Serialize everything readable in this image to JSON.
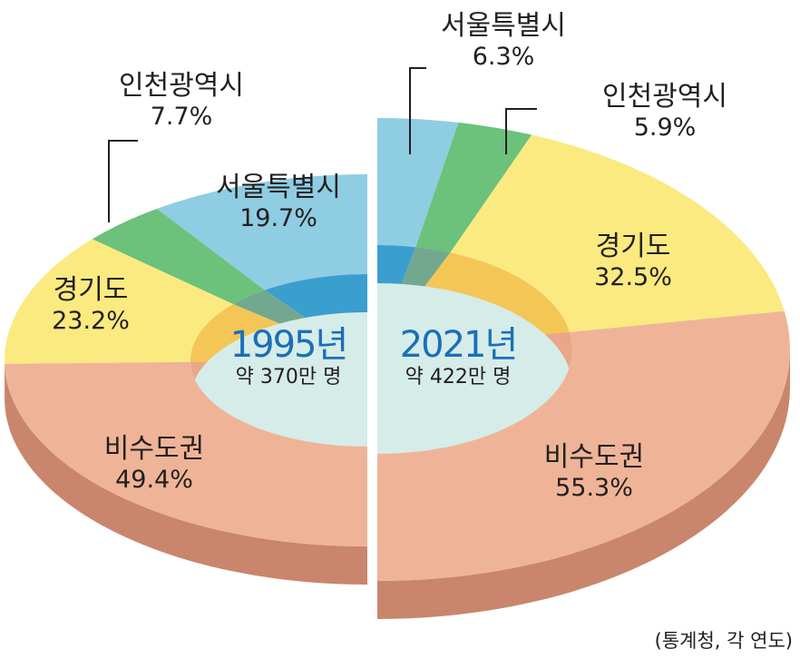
{
  "chart_data": [
    {
      "type": "pie",
      "title": "1995년",
      "subtitle": "약 370만 명",
      "categories": [
        "서울특별시",
        "인천광역시",
        "경기도",
        "비수도권"
      ],
      "values": [
        19.7,
        7.7,
        23.2,
        49.4
      ],
      "unit": "%"
    },
    {
      "type": "pie",
      "title": "2021년",
      "subtitle": "약 422만 명",
      "categories": [
        "서울특별시",
        "인천광역시",
        "경기도",
        "비수도권"
      ],
      "values": [
        6.3,
        5.9,
        32.5,
        55.3
      ],
      "unit": "%"
    }
  ],
  "source": "(통계청, 각 연도)",
  "colors": {
    "top": [
      "#8fcde3",
      "#6cc17b",
      "#fbea80",
      "#efb497"
    ],
    "inner": [
      "#3a9fcf",
      "#72a890",
      "#f4c655",
      "#e9a688"
    ],
    "side": [
      "#5fa9c6",
      "#4f9b5e",
      "#d9c160",
      "#c9866c"
    ],
    "hole": "#d6ece9"
  }
}
